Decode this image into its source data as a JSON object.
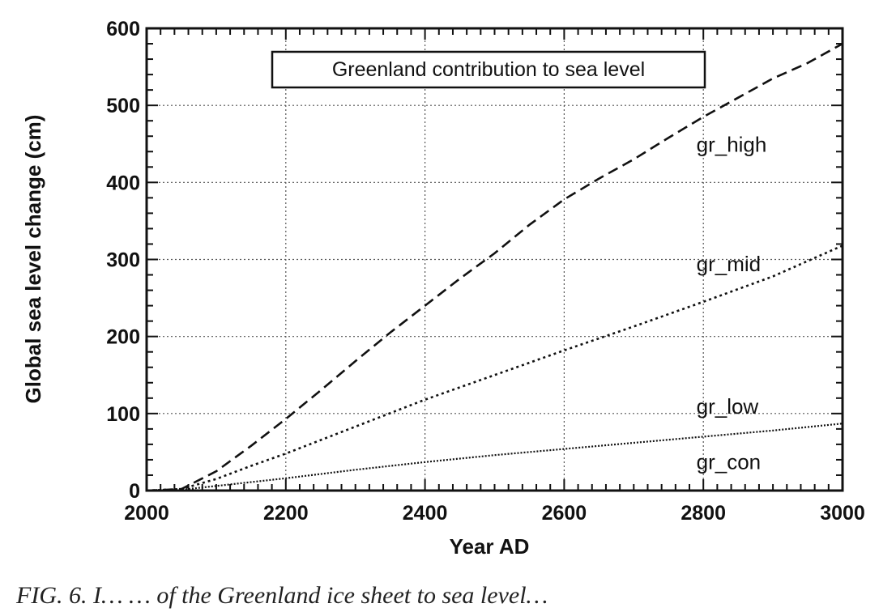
{
  "chart_data": {
    "type": "line",
    "title": "Greenland contribution to sea level",
    "xlabel": "Year AD",
    "ylabel": "Global sea level change (cm)",
    "xlim": [
      2000,
      3000
    ],
    "ylim": [
      0,
      600
    ],
    "x_ticks": [
      2000,
      2200,
      2400,
      2600,
      2800,
      3000
    ],
    "y_ticks": [
      0,
      100,
      200,
      300,
      400,
      500,
      600
    ],
    "grid": true,
    "series": [
      {
        "name": "gr_high",
        "line_style": "dashed",
        "x": [
          2000,
          2050,
          2100,
          2150,
          2200,
          2250,
          2300,
          2350,
          2400,
          2450,
          2500,
          2550,
          2600,
          2650,
          2700,
          2750,
          2800,
          2850,
          2900,
          2950,
          3000
        ],
        "y": [
          0,
          2,
          25,
          58,
          93,
          130,
          168,
          205,
          240,
          275,
          308,
          345,
          378,
          405,
          430,
          458,
          485,
          510,
          535,
          555,
          580
        ]
      },
      {
        "name": "gr_mid",
        "line_style": "dotted",
        "x": [
          2000,
          2050,
          2100,
          2150,
          2200,
          2300,
          2400,
          2500,
          2600,
          2700,
          2800,
          2900,
          3000
        ],
        "y": [
          0,
          2,
          15,
          32,
          48,
          83,
          118,
          150,
          182,
          213,
          245,
          278,
          318
        ]
      },
      {
        "name": "gr_low",
        "line_style": "fine-dotted",
        "x": [
          2000,
          2050,
          2100,
          2200,
          2300,
          2400,
          2500,
          2600,
          2700,
          2800,
          2900,
          3000
        ],
        "y": [
          0,
          1,
          6,
          16,
          27,
          37,
          46,
          54,
          62,
          70,
          78,
          87
        ]
      },
      {
        "name": "gr_con",
        "line_style": "solid",
        "x": [
          2000,
          3000
        ],
        "y": [
          0,
          0
        ]
      }
    ]
  },
  "caption_visible": "FIG. 6. I… … of the Greenland ice sheet to sea level…"
}
